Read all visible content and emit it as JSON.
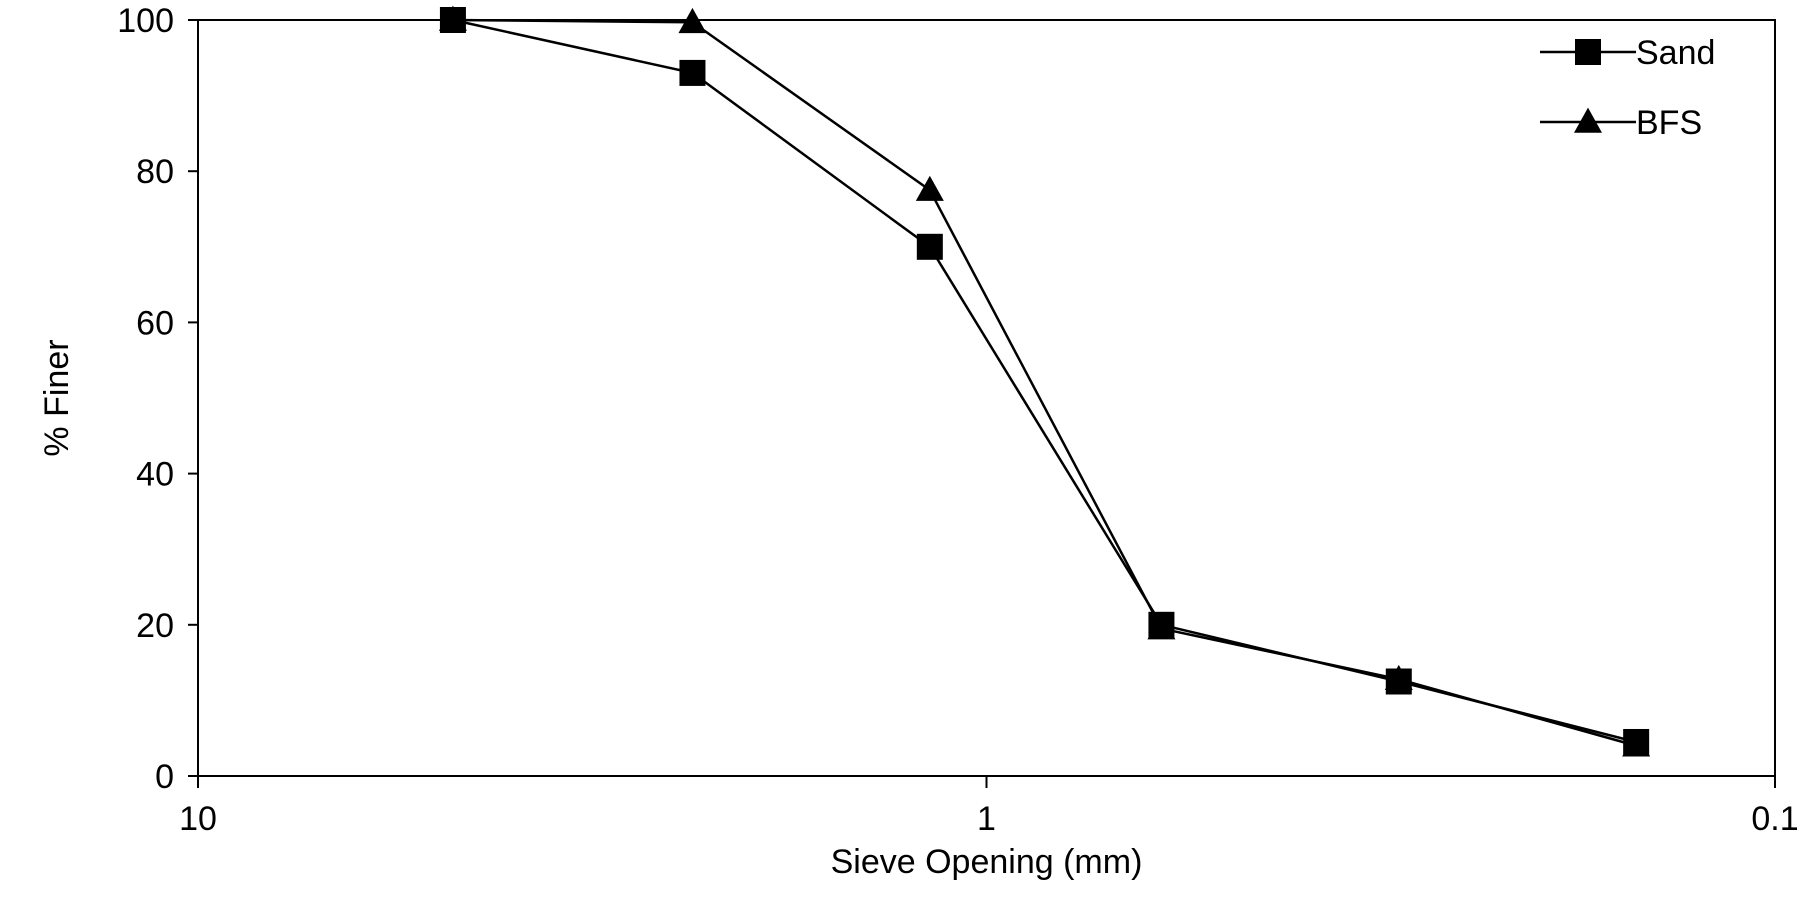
{
  "chart_data": {
    "type": "line",
    "title": "",
    "xlabel": "Sieve Opening (mm)",
    "ylabel": "% Finer",
    "x_scale": "log",
    "x_reversed": true,
    "xlim": [
      10,
      0.1
    ],
    "ylim": [
      0,
      100
    ],
    "x_ticks": [
      10,
      1,
      0.1
    ],
    "x_tick_labels": [
      "10",
      "1",
      "0.1"
    ],
    "y_ticks": [
      0,
      20,
      40,
      60,
      80,
      100
    ],
    "y_tick_labels": [
      "0",
      "20",
      "40",
      "60",
      "80",
      "100"
    ],
    "grid": false,
    "legend_position": "top-right",
    "series": [
      {
        "name": "Sand",
        "marker": "square",
        "x": [
          4.75,
          2.36,
          1.18,
          0.6,
          0.3,
          0.15
        ],
        "y": [
          100,
          93,
          70,
          20,
          12.5,
          4.5
        ]
      },
      {
        "name": "BFS",
        "marker": "triangle",
        "x": [
          4.75,
          2.36,
          1.18,
          0.6,
          0.3,
          0.15
        ],
        "y": [
          100,
          99.7,
          77.5,
          19.5,
          12.8,
          4
        ]
      }
    ],
    "colors": {
      "line": "#000000",
      "marker": "#000000"
    }
  }
}
